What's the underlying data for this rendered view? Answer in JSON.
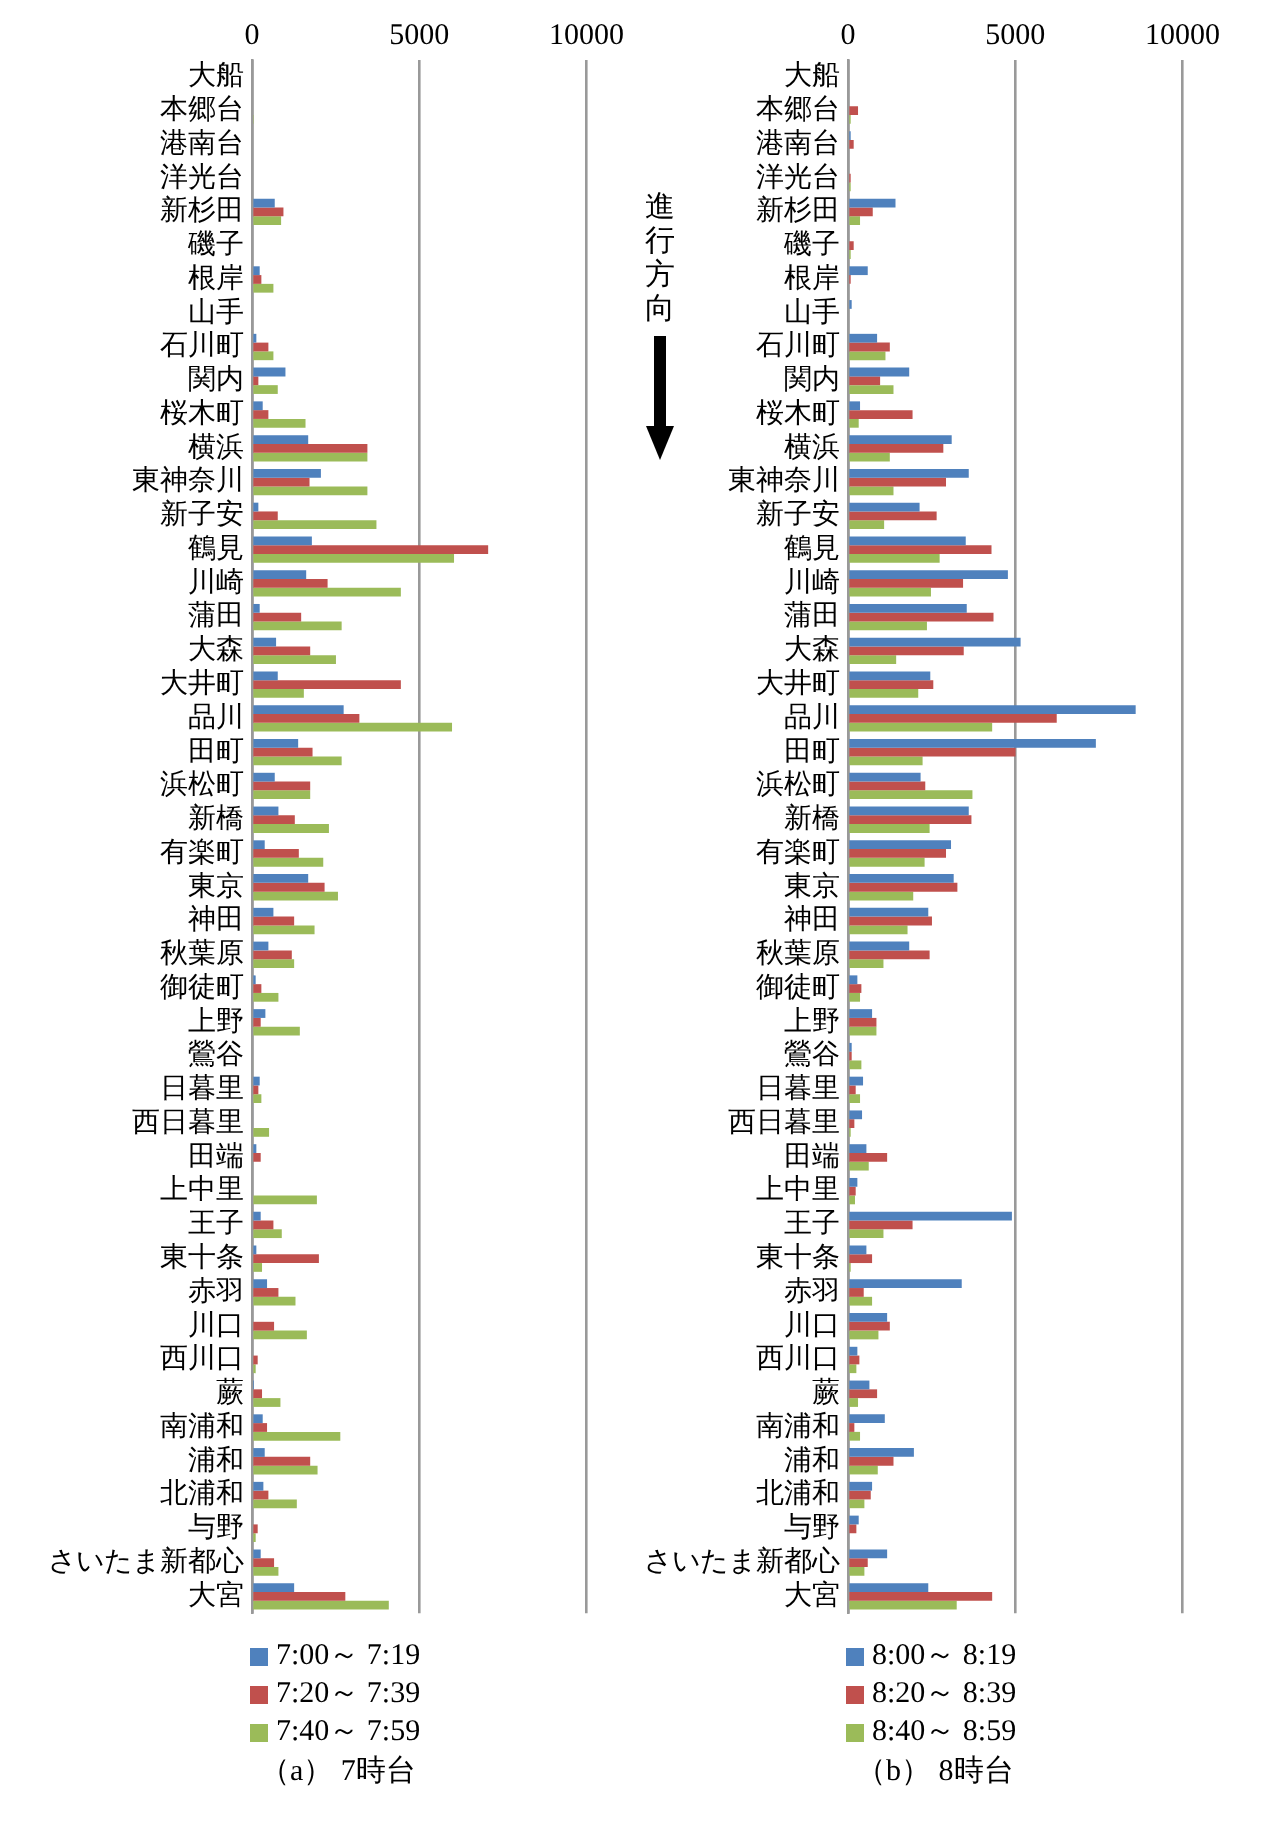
{
  "chart_data": [
    {
      "type": "bar",
      "orientation": "horizontal",
      "title": "（a） 7時台",
      "categories": [
        "大船",
        "本郷台",
        "港南台",
        "洋光台",
        "新杉田",
        "磯子",
        "根岸",
        "山手",
        "石川町",
        "関内",
        "桜木町",
        "横浜",
        "東神奈川",
        "新子安",
        "鶴見",
        "川崎",
        "蒲田",
        "大森",
        "大井町",
        "品川",
        "田町",
        "浜松町",
        "新橋",
        "有楽町",
        "東京",
        "神田",
        "秋葉原",
        "御徒町",
        "上野",
        "鶯谷",
        "日暮里",
        "西日暮里",
        "田端",
        "上中里",
        "王子",
        "東十条",
        "赤羽",
        "川口",
        "西川口",
        "蕨",
        "南浦和",
        "浦和",
        "北浦和",
        "与野",
        "さいたま新都心",
        "大宮"
      ],
      "series": [
        {
          "name": "7:00～ 7:19",
          "color": "#4f81bd",
          "values": [
            0,
            0,
            0,
            0,
            680,
            0,
            230,
            0,
            130,
            1000,
            320,
            1680,
            2060,
            190,
            1790,
            1620,
            230,
            720,
            770,
            2740,
            1380,
            680,
            790,
            380,
            1680,
            640,
            490,
            110,
            400,
            0,
            230,
            40,
            130,
            0,
            260,
            130,
            450,
            0,
            0,
            60,
            320,
            380,
            340,
            0,
            260,
            1260
          ]
        },
        {
          "name": "7:20～ 7:39",
          "color": "#c0504d",
          "values": [
            0,
            0,
            0,
            0,
            940,
            0,
            280,
            0,
            490,
            190,
            490,
            3450,
            1720,
            770,
            7060,
            2260,
            1470,
            1740,
            4450,
            3210,
            1810,
            1740,
            1280,
            1400,
            2170,
            1260,
            1190,
            280,
            260,
            0,
            190,
            0,
            260,
            0,
            640,
            2000,
            790,
            660,
            170,
            300,
            450,
            1740,
            490,
            170,
            660,
            2790
          ]
        },
        {
          "name": "7:40～ 7:59",
          "color": "#9bbb59",
          "values": [
            0,
            50,
            0,
            0,
            870,
            0,
            640,
            0,
            640,
            770,
            1600,
            3450,
            3450,
            3720,
            6040,
            4450,
            2680,
            2510,
            1550,
            5980,
            2680,
            1740,
            2300,
            2130,
            2570,
            1870,
            1260,
            790,
            1430,
            40,
            280,
            510,
            0,
            1940,
            890,
            300,
            1300,
            1640,
            110,
            850,
            2640,
            1960,
            1340,
            110,
            790,
            4090
          ]
        }
      ],
      "xlim": [
        0,
        10000
      ],
      "xticks": [
        0,
        5000,
        10000
      ],
      "grid": "x",
      "legend": "bottom"
    },
    {
      "type": "bar",
      "orientation": "horizontal",
      "title": "（b） 8時台",
      "annotations": [
        "進行方向"
      ],
      "categories": [
        "大船",
        "本郷台",
        "港南台",
        "洋光台",
        "新杉田",
        "磯子",
        "根岸",
        "山手",
        "石川町",
        "関内",
        "桜木町",
        "横浜",
        "東神奈川",
        "新子安",
        "鶴見",
        "川崎",
        "蒲田",
        "大森",
        "大井町",
        "品川",
        "田町",
        "浜松町",
        "新橋",
        "有楽町",
        "東京",
        "神田",
        "秋葉原",
        "御徒町",
        "上野",
        "鶯谷",
        "日暮里",
        "西日暮里",
        "田端",
        "上中里",
        "王子",
        "東十条",
        "赤羽",
        "川口",
        "西川口",
        "蕨",
        "南浦和",
        "浦和",
        "北浦和",
        "与野",
        "さいたま新都心",
        "大宮"
      ],
      "series": [
        {
          "name": "8:00～ 8:19",
          "color": "#4f81bd",
          "values": [
            0,
            0,
            80,
            0,
            1420,
            0,
            590,
            110,
            870,
            1830,
            360,
            3100,
            3610,
            2140,
            3520,
            4780,
            3550,
            5160,
            2460,
            8600,
            7410,
            2170,
            3610,
            3080,
            3160,
            2400,
            1830,
            280,
            720,
            110,
            450,
            420,
            550,
            280,
            4900,
            550,
            3400,
            1170,
            280,
            640,
            1100,
            1970,
            720,
            320,
            1170,
            2400
          ]
        },
        {
          "name": "8:20～ 8:39",
          "color": "#c0504d",
          "values": [
            0,
            300,
            170,
            80,
            740,
            170,
            80,
            0,
            1250,
            960,
            1930,
            2850,
            2930,
            2650,
            4290,
            3440,
            4350,
            3460,
            2550,
            6240,
            5010,
            2310,
            3690,
            2930,
            3270,
            2510,
            2440,
            400,
            850,
            110,
            230,
            190,
            1170,
            230,
            1930,
            720,
            470,
            1250,
            340,
            870,
            190,
            1360,
            680,
            250,
            590,
            4310
          ]
        },
        {
          "name": "8:40～ 8:59",
          "color": "#9bbb59",
          "values": [
            0,
            80,
            0,
            80,
            360,
            80,
            0,
            0,
            1120,
            1360,
            320,
            1250,
            1360,
            1080,
            2740,
            2480,
            2360,
            1440,
            2100,
            4310,
            2230,
            3720,
            2440,
            2290,
            1950,
            1780,
            1060,
            360,
            850,
            400,
            360,
            80,
            620,
            210,
            1060,
            80,
            720,
            910,
            250,
            300,
            360,
            890,
            490,
            0,
            490,
            3250
          ]
        }
      ],
      "xlim": [
        0,
        10000
      ],
      "xticks": [
        0,
        5000,
        10000
      ],
      "grid": "x",
      "legend": "bottom"
    }
  ]
}
